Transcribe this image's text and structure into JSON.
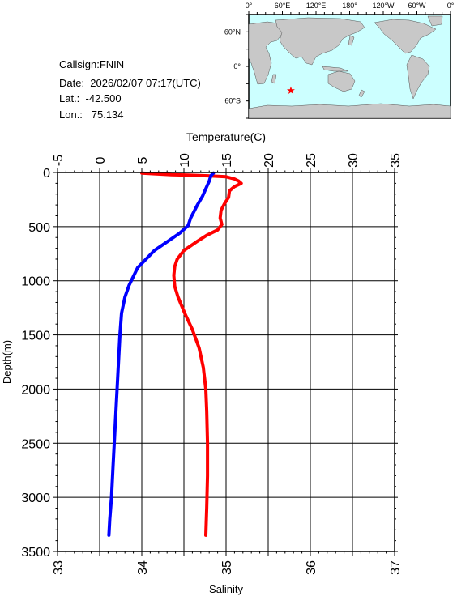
{
  "info": {
    "callsign": "Callsign:FNIN",
    "date": "Date:  2026/02/07 07:17(UTC)",
    "lat": "Lat.:  -42.500",
    "lon": "Lon.:   75.134"
  },
  "map": {
    "top_labels": [
      "0°",
      "60°E",
      "120°E",
      "180°",
      "120°W",
      "60°W",
      "0°"
    ],
    "left_labels": [
      "60°N",
      "0°",
      "60°S"
    ],
    "ocean_color": "#ccffff",
    "land_color": "#c8c8c8",
    "marker": {
      "lat": -42.5,
      "lon": 75.134,
      "color": "#ff0000",
      "icon": "star-marker"
    }
  },
  "chart_data": {
    "type": "line",
    "x_top_label": "Temperature(C)",
    "x_bottom_label": "Salinity",
    "ylabel": "Depth(m)",
    "temperature_range": [
      -5,
      35
    ],
    "temperature_ticks": [
      "-5",
      "0",
      "5",
      "10",
      "15",
      "20",
      "25",
      "30",
      "35"
    ],
    "salinity_range": [
      33,
      37
    ],
    "salinity_ticks": [
      "33",
      "34",
      "35",
      "36",
      "37"
    ],
    "depth_range": [
      0,
      3500
    ],
    "depth_ticks": [
      "0",
      "500",
      "1000",
      "1500",
      "2000",
      "2500",
      "3000",
      "3500"
    ],
    "grid": true,
    "series": [
      {
        "color": "#ff0000",
        "axis": "temperature",
        "points": [
          [
            5.0,
            5
          ],
          [
            6.5,
            12
          ],
          [
            8.5,
            20
          ],
          [
            10.5,
            25
          ],
          [
            12.5,
            30
          ],
          [
            15.0,
            40
          ],
          [
            16.0,
            60
          ],
          [
            16.5,
            80
          ],
          [
            16.8,
            100
          ],
          [
            16.0,
            130
          ],
          [
            15.4,
            170
          ],
          [
            15.3,
            230
          ],
          [
            14.8,
            290
          ],
          [
            14.4,
            350
          ],
          [
            14.3,
            420
          ],
          [
            14.5,
            480
          ],
          [
            14.0,
            530
          ],
          [
            12.7,
            580
          ],
          [
            11.5,
            640
          ],
          [
            10.0,
            720
          ],
          [
            9.2,
            800
          ],
          [
            8.9,
            870
          ],
          [
            8.8,
            950
          ],
          [
            8.9,
            1050
          ],
          [
            9.3,
            1150
          ],
          [
            10.1,
            1300
          ],
          [
            11.0,
            1450
          ],
          [
            11.8,
            1620
          ],
          [
            12.3,
            1800
          ],
          [
            12.6,
            2000
          ],
          [
            12.7,
            2200
          ],
          [
            12.8,
            2500
          ],
          [
            12.8,
            2800
          ],
          [
            12.7,
            3100
          ],
          [
            12.6,
            3350
          ]
        ]
      },
      {
        "color": "#0000ff",
        "axis": "salinity",
        "points": [
          [
            34.85,
            5
          ],
          [
            34.82,
            30
          ],
          [
            34.8,
            80
          ],
          [
            34.76,
            150
          ],
          [
            34.72,
            220
          ],
          [
            34.66,
            300
          ],
          [
            34.62,
            360
          ],
          [
            34.58,
            420
          ],
          [
            34.55,
            490
          ],
          [
            34.45,
            560
          ],
          [
            34.3,
            640
          ],
          [
            34.15,
            720
          ],
          [
            34.05,
            800
          ],
          [
            33.95,
            880
          ],
          [
            33.9,
            960
          ],
          [
            33.85,
            1040
          ],
          [
            33.8,
            1150
          ],
          [
            33.76,
            1300
          ],
          [
            33.74,
            1500
          ],
          [
            33.72,
            1800
          ],
          [
            33.7,
            2100
          ],
          [
            33.68,
            2400
          ],
          [
            33.66,
            2700
          ],
          [
            33.64,
            3000
          ],
          [
            33.62,
            3200
          ],
          [
            33.61,
            3350
          ]
        ]
      }
    ]
  }
}
